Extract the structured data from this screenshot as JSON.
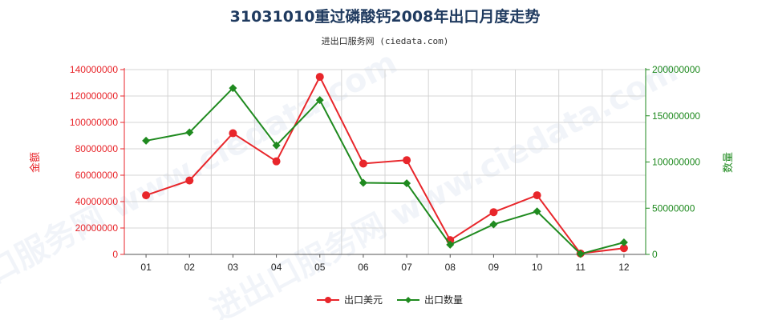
{
  "chart_data": {
    "type": "line",
    "title": "31031010重过磷酸钙2008年出口月度走势",
    "subtitle": "进出口服务网 (ciedata.com)",
    "watermark": "进出口服务网 www.ciedata.com",
    "categories": [
      "01",
      "02",
      "03",
      "04",
      "05",
      "06",
      "07",
      "08",
      "09",
      "10",
      "11",
      "12"
    ],
    "y_left": {
      "label": "金额",
      "ylim": [
        0,
        140000000
      ],
      "ticks": [
        "0",
        "20000000",
        "40000000",
        "60000000",
        "80000000",
        "100000000",
        "120000000",
        "140000000"
      ],
      "color": "#e8262b"
    },
    "y_right": {
      "label": "数量",
      "ylim": [
        0,
        200000000
      ],
      "ticks": [
        "0",
        "50000000",
        "100000000",
        "150000000",
        "200000000"
      ],
      "color": "#1f8a1f"
    },
    "series": [
      {
        "name": "出口美元",
        "axis": "left",
        "color": "#e8262b",
        "marker": "circle",
        "values": [
          44800000,
          56000000,
          91800000,
          70500000,
          134500000,
          68800000,
          71400000,
          10800000,
          32000000,
          44800000,
          700000,
          4700000
        ]
      },
      {
        "name": "出口数量",
        "axis": "right",
        "color": "#1f8a1f",
        "marker": "diamond",
        "values": [
          123000000,
          132000000,
          180000000,
          118000000,
          167000000,
          77500000,
          77000000,
          10500000,
          32500000,
          46500000,
          500000,
          13000000
        ]
      }
    ],
    "grid": true,
    "legend": "bottom-center"
  }
}
